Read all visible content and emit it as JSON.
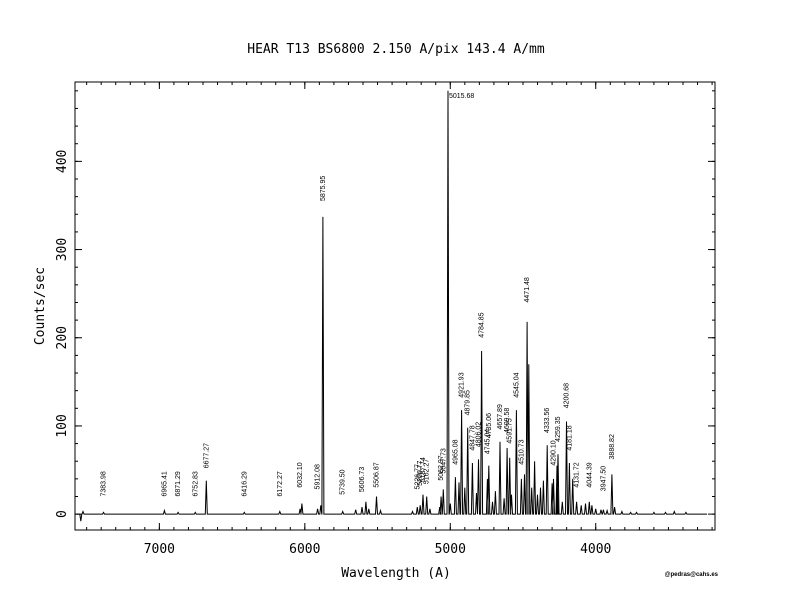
{
  "chart_data": {
    "type": "line",
    "title": "HEAR  T13  BS6800  2.150 A/pix  143.4 A/mm",
    "xlabel": "Wavelength (A)",
    "ylabel": "Counts/sec",
    "credit": "@pedras@cahs.es",
    "xlim": [
      7580,
      3180
    ],
    "ylim": [
      -18,
      490
    ],
    "x_reversed": true,
    "x_ticks": [
      7000,
      6000,
      5000,
      4000
    ],
    "y_ticks": [
      0,
      100,
      200,
      300,
      400
    ],
    "x_tick_labels": [
      "7000",
      "6000",
      "5000",
      "4000"
    ],
    "y_tick_labels": [
      "0",
      "100",
      "200",
      "300",
      "400"
    ],
    "baseline": 0,
    "series": [
      {
        "peaks": [
          {
            "x": 7540,
            "y": -8
          },
          {
            "x": 7525,
            "y": 3
          },
          {
            "x": 7383.98,
            "y": 2
          },
          {
            "x": 6965.41,
            "y": 4
          },
          {
            "x": 6871.29,
            "y": 2
          },
          {
            "x": 6752.83,
            "y": 2
          },
          {
            "x": 6677.27,
            "y": 38
          },
          {
            "x": 6416.29,
            "y": 2
          },
          {
            "x": 6172.27,
            "y": 3
          },
          {
            "x": 6032.1,
            "y": 6
          },
          {
            "x": 6020,
            "y": 12
          },
          {
            "x": 5912.08,
            "y": 6
          },
          {
            "x": 5890,
            "y": 10
          },
          {
            "x": 5875.95,
            "y": 337
          },
          {
            "x": 5739.5,
            "y": 3
          },
          {
            "x": 5650,
            "y": 5
          },
          {
            "x": 5606.73,
            "y": 8
          },
          {
            "x": 5580,
            "y": 14
          },
          {
            "x": 5560,
            "y": 6
          },
          {
            "x": 5506.87,
            "y": 20
          },
          {
            "x": 5480,
            "y": 4
          },
          {
            "x": 5260,
            "y": 3
          },
          {
            "x": 5226.77,
            "y": 8
          },
          {
            "x": 5206.77,
            "y": 10
          },
          {
            "x": 5187.74,
            "y": 22
          },
          {
            "x": 5162.27,
            "y": 20
          },
          {
            "x": 5140,
            "y": 6
          },
          {
            "x": 5072.7,
            "y": 8
          },
          {
            "x": 5062.97,
            "y": 20
          },
          {
            "x": 5047.73,
            "y": 28
          },
          {
            "x": 5015.68,
            "y": 480
          },
          {
            "x": 5000,
            "y": 12
          },
          {
            "x": 4965.08,
            "y": 42
          },
          {
            "x": 4940,
            "y": 36
          },
          {
            "x": 4921.93,
            "y": 118
          },
          {
            "x": 4900,
            "y": 30
          },
          {
            "x": 4879.85,
            "y": 98
          },
          {
            "x": 4847.78,
            "y": 58
          },
          {
            "x": 4820,
            "y": 24
          },
          {
            "x": 4806.02,
            "y": 62
          },
          {
            "x": 4784.85,
            "y": 185
          },
          {
            "x": 4745.04,
            "y": 40
          },
          {
            "x": 4735.06,
            "y": 55
          },
          {
            "x": 4710,
            "y": 14
          },
          {
            "x": 4690,
            "y": 26
          },
          {
            "x": 4657.89,
            "y": 82
          },
          {
            "x": 4630,
            "y": 18
          },
          {
            "x": 4609.58,
            "y": 75
          },
          {
            "x": 4591.75,
            "y": 64
          },
          {
            "x": 4579,
            "y": 22
          },
          {
            "x": 4545.04,
            "y": 118
          },
          {
            "x": 4510.73,
            "y": 40
          },
          {
            "x": 4490,
            "y": 45
          },
          {
            "x": 4471.48,
            "y": 218
          },
          {
            "x": 4460,
            "y": 170
          },
          {
            "x": 4440,
            "y": 30
          },
          {
            "x": 4420,
            "y": 60
          },
          {
            "x": 4400,
            "y": 22
          },
          {
            "x": 4380,
            "y": 30
          },
          {
            "x": 4360,
            "y": 38
          },
          {
            "x": 4333.56,
            "y": 78
          },
          {
            "x": 4300,
            "y": 35
          },
          {
            "x": 4290.1,
            "y": 40
          },
          {
            "x": 4266,
            "y": 55
          },
          {
            "x": 4259.35,
            "y": 68
          },
          {
            "x": 4230,
            "y": 14
          },
          {
            "x": 4200.68,
            "y": 105
          },
          {
            "x": 4181.18,
            "y": 58
          },
          {
            "x": 4158,
            "y": 40
          },
          {
            "x": 4131.72,
            "y": 14
          },
          {
            "x": 4100,
            "y": 10
          },
          {
            "x": 4070,
            "y": 12
          },
          {
            "x": 4044.39,
            "y": 14
          },
          {
            "x": 4026,
            "y": 10
          },
          {
            "x": 4000,
            "y": 6
          },
          {
            "x": 3964,
            "y": 5
          },
          {
            "x": 3947.5,
            "y": 5
          },
          {
            "x": 3922,
            "y": 4
          },
          {
            "x": 3888.82,
            "y": 45
          },
          {
            "x": 3870,
            "y": 8
          },
          {
            "x": 3820,
            "y": 3
          },
          {
            "x": 3760,
            "y": 2
          },
          {
            "x": 3720,
            "y": 2
          },
          {
            "x": 3600,
            "y": 2
          },
          {
            "x": 3520,
            "y": 2
          },
          {
            "x": 3460,
            "y": 3
          },
          {
            "x": 3380,
            "y": 2
          }
        ]
      }
    ],
    "annotations": [
      {
        "x": 7383.98,
        "y": 20,
        "text": "7383.98"
      },
      {
        "x": 6965.41,
        "y": 20,
        "text": "6965.41"
      },
      {
        "x": 6871.29,
        "y": 20,
        "text": "6871.29"
      },
      {
        "x": 6752.83,
        "y": 20,
        "text": "6752.83"
      },
      {
        "x": 6677.27,
        "y": 52,
        "text": "6677.27"
      },
      {
        "x": 6416.29,
        "y": 20,
        "text": "6416.29"
      },
      {
        "x": 6172.27,
        "y": 20,
        "text": "6172.27"
      },
      {
        "x": 6032.1,
        "y": 30,
        "text": "6032.10"
      },
      {
        "x": 5912.08,
        "y": 28,
        "text": "5912.08"
      },
      {
        "x": 5875.95,
        "y": 355,
        "text": "5875.95"
      },
      {
        "x": 5739.5,
        "y": 22,
        "text": "5739.50"
      },
      {
        "x": 5606.73,
        "y": 25,
        "text": "5606.73"
      },
      {
        "x": 5506.87,
        "y": 30,
        "text": "5506.87"
      },
      {
        "x": 5226.77,
        "y": 28,
        "text": "5226.77"
      },
      {
        "x": 5206.77,
        "y": 32,
        "text": "5206.77"
      },
      {
        "x": 5187.74,
        "y": 36,
        "text": "5187.74"
      },
      {
        "x": 5162.27,
        "y": 34,
        "text": "5162.27"
      },
      {
        "x": 5062.97,
        "y": 38,
        "text": "5062.97"
      },
      {
        "x": 5047.73,
        "y": 46,
        "text": "5047.73"
      },
      {
        "x": 5015.68,
        "y": 482,
        "text": "5015.68"
      },
      {
        "x": 4965.08,
        "y": 56,
        "text": "4965.08"
      },
      {
        "x": 4921.93,
        "y": 132,
        "text": "4921.93"
      },
      {
        "x": 4879.85,
        "y": 112,
        "text": "4879.85"
      },
      {
        "x": 4847.78,
        "y": 72,
        "text": "4847.78"
      },
      {
        "x": 4806.02,
        "y": 76,
        "text": "4806.02"
      },
      {
        "x": 4784.85,
        "y": 200,
        "text": "4784.85"
      },
      {
        "x": 4745.04,
        "y": 68,
        "text": "4745.04"
      },
      {
        "x": 4735.06,
        "y": 86,
        "text": "4735.06"
      },
      {
        "x": 4657.89,
        "y": 96,
        "text": "4657.89"
      },
      {
        "x": 4609.58,
        "y": 92,
        "text": "4609.58"
      },
      {
        "x": 4591.75,
        "y": 80,
        "text": "4591.75"
      },
      {
        "x": 4545.04,
        "y": 132,
        "text": "4545.04"
      },
      {
        "x": 4510.73,
        "y": 56,
        "text": "4510.73"
      },
      {
        "x": 4471.48,
        "y": 240,
        "text": "4471.48"
      },
      {
        "x": 4333.56,
        "y": 92,
        "text": "4333.56"
      },
      {
        "x": 4290.1,
        "y": 55,
        "text": "4290.10"
      },
      {
        "x": 4259.35,
        "y": 82,
        "text": "4259.35"
      },
      {
        "x": 4200.68,
        "y": 120,
        "text": "4200.68"
      },
      {
        "x": 4181.18,
        "y": 72,
        "text": "4181.18"
      },
      {
        "x": 4131.72,
        "y": 30,
        "text": "4131.72"
      },
      {
        "x": 4044.39,
        "y": 30,
        "text": "4044.39"
      },
      {
        "x": 3947.5,
        "y": 26,
        "text": "3947.50"
      },
      {
        "x": 3888.82,
        "y": 62,
        "text": "3888.82"
      }
    ]
  }
}
